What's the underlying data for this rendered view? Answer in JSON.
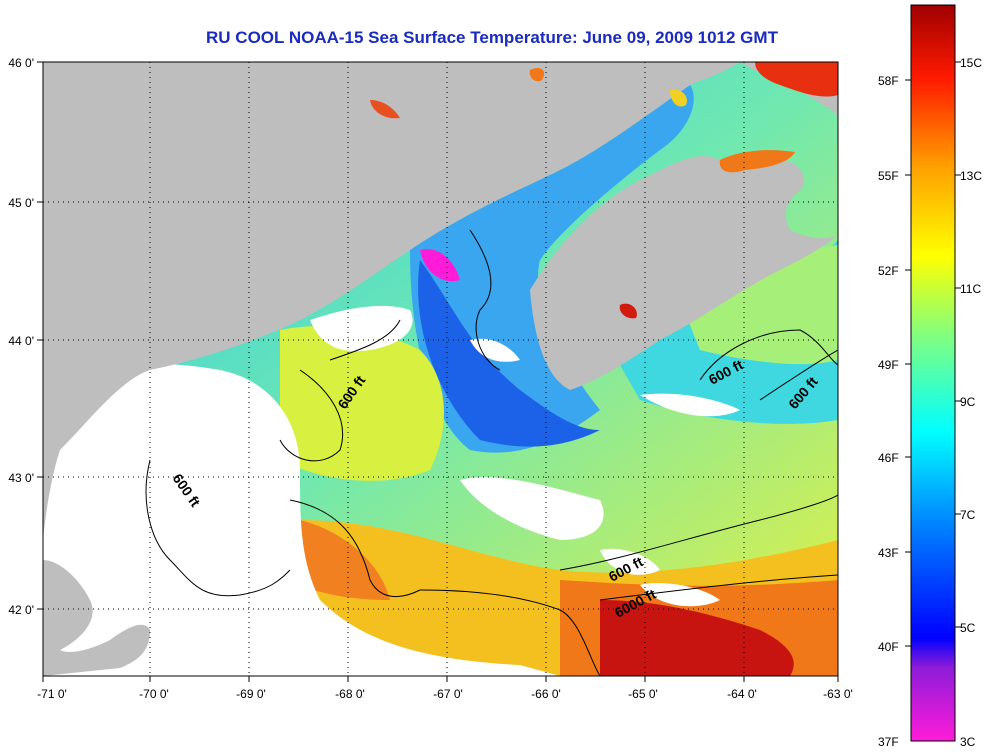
{
  "title": "RU COOL  NOAA-15  Sea Surface Temperature:  June 09, 2009 1012 GMT",
  "map": {
    "lon_ticks": [
      "-71 0'",
      "-70 0'",
      "-69 0'",
      "-68 0'",
      "-67 0'",
      "-66 0'",
      "-65 0'",
      "-64 0'",
      "-63 0'"
    ],
    "lat_ticks": [
      "46 0'",
      "45 0'",
      "44 0'",
      "43 0'",
      "42 0'"
    ],
    "contour_labels": [
      "600 ft",
      "600 ft",
      "600 ft",
      "600 ft",
      "600 ft",
      "6000 ft"
    ],
    "colors": {
      "land": "#bebebe",
      "cloud": "#ffffff",
      "ocean_warm": "#d21a0f",
      "ocean_cold": "#2a5cf0"
    }
  },
  "colorbar": {
    "fahrenheit": [
      "58F",
      "55F",
      "52F",
      "49F",
      "46F",
      "43F",
      "40F",
      "37F"
    ],
    "celsius": [
      "15C",
      "13C",
      "11C",
      "9C",
      "7C",
      "5C",
      "3C"
    ],
    "colors": [
      "#ff1cd8",
      "#8c1cd8",
      "#0000ff",
      "#00a0ff",
      "#00ffff",
      "#80ff80",
      "#ffff00",
      "#ffa000",
      "#ff2000",
      "#a00000"
    ]
  }
}
